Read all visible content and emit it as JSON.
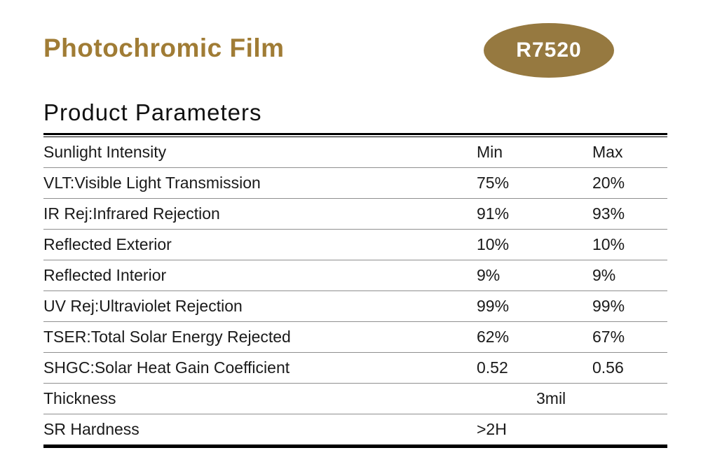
{
  "header": {
    "title": "Photochromic Film",
    "model": "R7520",
    "accent_color": "#a07c35",
    "badge_color": "#967940"
  },
  "section": {
    "title": "Product Parameters"
  },
  "table": {
    "rows": [
      {
        "label": "Sunlight Intensity",
        "min": "Min",
        "max": "Max"
      },
      {
        "label": "VLT:Visible Light Transmission",
        "min": "75%",
        "max": "20%"
      },
      {
        "label": "IR Rej:Infrared Rejection",
        "min": "91%",
        "max": "93%"
      },
      {
        "label": "Reflected Exterior",
        "min": "10%",
        "max": "10%"
      },
      {
        "label": "Reflected Interior",
        "min": "9%",
        "max": "9%"
      },
      {
        "label": "UV Rej:Ultraviolet Rejection",
        "min": "99%",
        "max": "99%"
      },
      {
        "label": "TSER:Total Solar Energy Rejected",
        "min": "62%",
        "max": "67%"
      },
      {
        "label": "SHGC:Solar Heat Gain Coefficient",
        "min": "0.52",
        "max": "0.56"
      },
      {
        "label": "Thickness",
        "value": "3mil"
      },
      {
        "label": "SR Hardness",
        "value": ">2H"
      }
    ]
  }
}
